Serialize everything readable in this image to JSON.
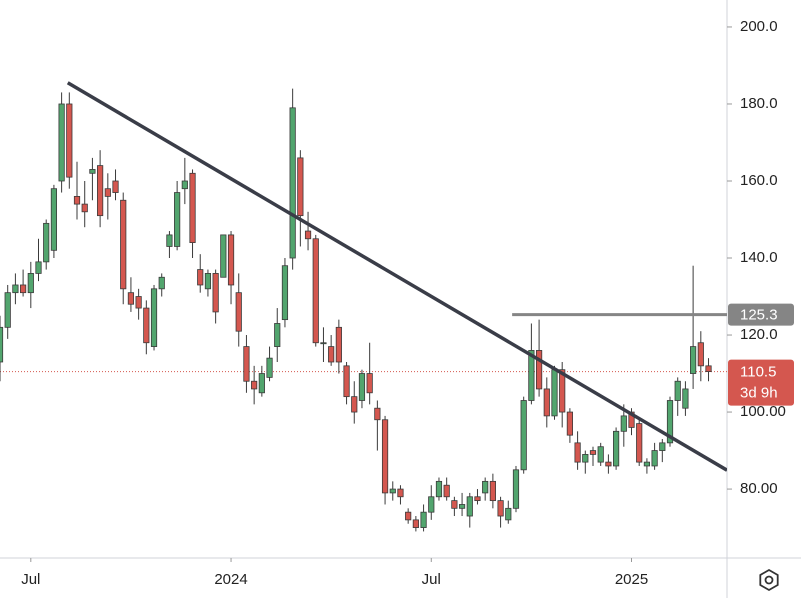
{
  "chart_data": {
    "type": "candlestick",
    "up_color": "#52a56e",
    "down_color": "#d4574f",
    "open": [
      113,
      122,
      131,
      133,
      131,
      136,
      139,
      142,
      160,
      180,
      156,
      154,
      162,
      164,
      158,
      160,
      155,
      131,
      130,
      127,
      117,
      132,
      143,
      143,
      158,
      162,
      137,
      132,
      136,
      135,
      146,
      131,
      117,
      108,
      105,
      109,
      117,
      124,
      140,
      166,
      147,
      145,
      118,
      117,
      122,
      112,
      104,
      103,
      110,
      101,
      98,
      79,
      80,
      74,
      72,
      70,
      74,
      78,
      81,
      77,
      75,
      73,
      78,
      79,
      82,
      77,
      72,
      75,
      85,
      103,
      116,
      106,
      99,
      111,
      100,
      92,
      87,
      90,
      87,
      87,
      86,
      95,
      100,
      97,
      86,
      86,
      90,
      92,
      103,
      101,
      110,
      118,
      112
    ],
    "high": [
      125,
      133,
      136,
      137,
      139,
      145,
      150,
      159,
      183,
      183,
      165,
      160,
      166,
      168,
      162,
      163,
      157,
      135,
      132,
      129,
      133,
      136,
      147,
      160,
      166,
      163,
      141,
      137,
      137,
      146,
      147,
      136,
      120,
      112,
      112,
      117,
      127,
      140,
      184,
      168,
      152,
      146,
      122,
      120,
      124,
      113,
      108,
      111,
      118,
      103,
      99,
      82,
      81,
      75,
      73,
      76,
      81,
      83,
      83,
      78,
      79,
      79,
      80,
      83,
      84,
      78,
      77,
      86,
      104,
      123,
      124,
      109,
      112,
      113,
      101,
      95,
      90,
      91,
      92,
      89,
      96,
      102,
      101,
      98,
      88,
      92,
      93,
      104,
      109,
      108,
      138,
      121,
      114
    ],
    "low": [
      108,
      119,
      128,
      130,
      127,
      134,
      137,
      140,
      157,
      158,
      150,
      148,
      155,
      148,
      150,
      155,
      128,
      126,
      124,
      115,
      116,
      130,
      140,
      142,
      154,
      140,
      131,
      130,
      123,
      135,
      128,
      117,
      105,
      102,
      104,
      108,
      113,
      122,
      137,
      143,
      142,
      117,
      113,
      112,
      110,
      102,
      97,
      101,
      102,
      90,
      76,
      77,
      76,
      71,
      69,
      69,
      72,
      77,
      77,
      73,
      73,
      70,
      76,
      77,
      75,
      70,
      71,
      74,
      84,
      102,
      104,
      96,
      98,
      96,
      92,
      85,
      84,
      86,
      86,
      84,
      85,
      91,
      94,
      86,
      84,
      85,
      87,
      91,
      99,
      99,
      106,
      108,
      108
    ],
    "close": [
      122,
      131,
      133,
      131,
      136,
      139,
      149,
      158,
      180,
      161,
      154,
      152,
      163,
      151,
      156,
      157,
      132,
      128,
      127,
      118,
      132,
      135,
      146,
      157,
      160,
      144,
      133,
      136,
      126,
      146,
      133,
      121,
      108,
      106,
      110,
      114,
      123,
      138,
      179,
      151,
      145,
      118,
      118,
      113,
      113,
      104,
      100,
      110,
      105,
      98,
      79,
      80,
      78,
      72,
      70,
      74,
      78,
      82,
      78,
      75,
      76,
      78,
      77,
      82,
      77,
      73,
      75,
      85,
      103,
      116,
      106,
      99,
      111,
      100,
      94,
      87,
      89,
      89,
      91,
      86,
      95,
      99,
      96,
      87,
      87,
      90,
      92,
      103,
      108,
      106,
      117,
      112,
      110.5
    ],
    "xlim": [
      0,
      94.4
    ],
    "xticks": [
      {
        "value": 4,
        "label": "Jul"
      },
      {
        "value": 30,
        "label": "2024"
      },
      {
        "value": 56,
        "label": "Jul"
      },
      {
        "value": 82,
        "label": "2025"
      }
    ],
    "ylim": [
      62.1,
      207.0
    ],
    "yticks": [
      {
        "value": 80,
        "label": "80.00"
      },
      {
        "value": 100,
        "label": "100.00"
      },
      {
        "value": 120,
        "label": "120.0"
      },
      {
        "value": 140,
        "label": "140.0"
      },
      {
        "value": 160,
        "label": "160.0"
      },
      {
        "value": 180,
        "label": "180.0"
      },
      {
        "value": 200,
        "label": "200.0"
      }
    ],
    "trendline": {
      "start": [
        8.8,
        185.5
      ],
      "end": [
        94.4,
        84.9
      ],
      "color": "#3a3d48"
    },
    "level": {
      "value": 125.3,
      "start": 66.5,
      "color": "#858585"
    },
    "last_price": {
      "value": 110.5,
      "countdown": "3d 9h",
      "color": "#d4574f"
    }
  }
}
